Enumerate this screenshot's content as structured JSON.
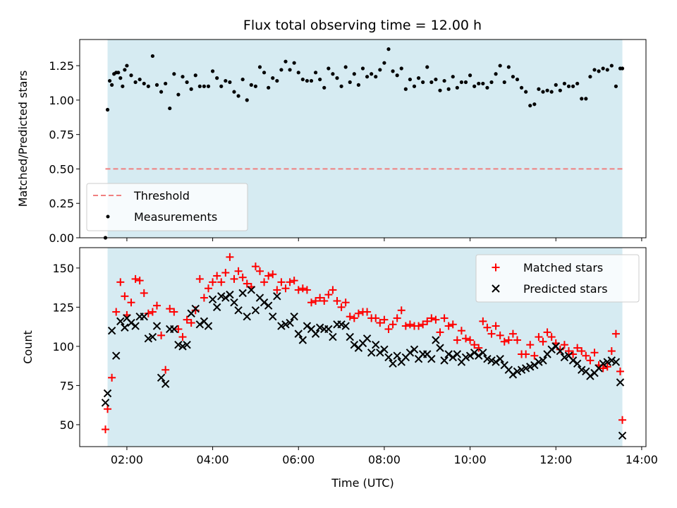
{
  "title": "Flux total observing time = 12.00 h",
  "chart_data": [
    {
      "type": "scatter",
      "title": "Flux total observing time = 12.00 h",
      "xlabel": "",
      "ylabel": "Matched/Predicted stars",
      "xlim": [
        0.9,
        14.1
      ],
      "ylim": [
        0.0,
        1.44
      ],
      "yticks": [
        0.0,
        0.25,
        0.5,
        0.75,
        1.0,
        1.25
      ],
      "ytick_labels": [
        "0.00",
        "0.25",
        "0.50",
        "0.75",
        "1.00",
        "1.25"
      ],
      "shaded_span": [
        1.55,
        13.55
      ],
      "shaded_color": "#add8e6",
      "threshold": {
        "name": "Threshold",
        "y": 0.5,
        "x": [
          1.5,
          13.55
        ],
        "color": "#f08080"
      },
      "legend": {
        "location": "lower-left",
        "entries": [
          "Threshold",
          "Measurements"
        ]
      },
      "series": [
        {
          "name": "Measurements",
          "color": "#000000",
          "x": [
            1.5,
            1.55,
            1.6,
            1.65,
            1.7,
            1.75,
            1.8,
            1.85,
            1.9,
            1.95,
            2.0,
            2.1,
            2.2,
            2.3,
            2.4,
            2.5,
            2.6,
            2.7,
            2.8,
            2.9,
            3.0,
            3.1,
            3.2,
            3.3,
            3.4,
            3.5,
            3.6,
            3.7,
            3.8,
            3.9,
            4.0,
            4.1,
            4.2,
            4.3,
            4.4,
            4.5,
            4.6,
            4.7,
            4.8,
            4.9,
            5.0,
            5.1,
            5.2,
            5.3,
            5.4,
            5.5,
            5.6,
            5.7,
            5.8,
            5.9,
            6.0,
            6.1,
            6.2,
            6.3,
            6.4,
            6.5,
            6.6,
            6.7,
            6.8,
            6.9,
            7.0,
            7.1,
            7.2,
            7.3,
            7.4,
            7.5,
            7.6,
            7.7,
            7.8,
            7.9,
            8.0,
            8.1,
            8.2,
            8.3,
            8.4,
            8.5,
            8.6,
            8.7,
            8.8,
            8.9,
            9.0,
            9.1,
            9.2,
            9.3,
            9.4,
            9.5,
            9.6,
            9.7,
            9.8,
            9.9,
            10.0,
            10.1,
            10.2,
            10.3,
            10.4,
            10.5,
            10.6,
            10.7,
            10.8,
            10.9,
            11.0,
            11.1,
            11.2,
            11.3,
            11.4,
            11.5,
            11.6,
            11.7,
            11.8,
            11.9,
            12.0,
            12.1,
            12.2,
            12.3,
            12.4,
            12.5,
            12.6,
            12.7,
            12.8,
            12.9,
            13.0,
            13.1,
            13.2,
            13.3,
            13.4,
            13.5,
            13.55
          ],
          "y": [
            0.0,
            0.93,
            1.14,
            1.11,
            1.19,
            1.2,
            1.2,
            1.16,
            1.1,
            1.22,
            1.25,
            1.18,
            1.13,
            1.15,
            1.12,
            1.1,
            1.32,
            1.11,
            1.06,
            1.12,
            0.94,
            1.19,
            1.04,
            1.17,
            1.13,
            1.08,
            1.18,
            1.1,
            1.1,
            1.1,
            1.21,
            1.16,
            1.1,
            1.14,
            1.13,
            1.06,
            1.03,
            1.15,
            1.0,
            1.11,
            1.1,
            1.24,
            1.2,
            1.09,
            1.16,
            1.14,
            1.22,
            1.28,
            1.22,
            1.27,
            1.2,
            1.15,
            1.14,
            1.14,
            1.2,
            1.15,
            1.09,
            1.23,
            1.19,
            1.16,
            1.1,
            1.24,
            1.13,
            1.19,
            1.11,
            1.23,
            1.17,
            1.19,
            1.17,
            1.22,
            1.27,
            1.37,
            1.21,
            1.18,
            1.23,
            1.08,
            1.15,
            1.1,
            1.16,
            1.13,
            1.24,
            1.13,
            1.15,
            1.07,
            1.14,
            1.08,
            1.17,
            1.09,
            1.13,
            1.13,
            1.18,
            1.1,
            1.12,
            1.12,
            1.09,
            1.13,
            1.19,
            1.25,
            1.13,
            1.24,
            1.17,
            1.15,
            1.09,
            1.06,
            0.96,
            0.97,
            1.08,
            1.06,
            1.07,
            1.06,
            1.11,
            1.07,
            1.12,
            1.1,
            1.1,
            1.12,
            1.01,
            1.01,
            1.17,
            1.22,
            1.21,
            1.23,
            1.22,
            1.25,
            1.1,
            1.23,
            1.23
          ]
        }
      ]
    },
    {
      "type": "scatter",
      "xlabel": "Time (UTC)",
      "ylabel": "Count",
      "xlim": [
        0.9,
        14.1
      ],
      "ylim": [
        36,
        163
      ],
      "xticks": [
        2,
        4,
        6,
        8,
        10,
        12,
        14
      ],
      "xtick_labels": [
        "02:00",
        "04:00",
        "06:00",
        "08:00",
        "10:00",
        "12:00",
        "14:00"
      ],
      "yticks": [
        50,
        75,
        100,
        125,
        150
      ],
      "ytick_labels": [
        "50",
        "75",
        "100",
        "125",
        "150"
      ],
      "shaded_span": [
        1.55,
        13.55
      ],
      "shaded_color": "#add8e6",
      "legend": {
        "location": "top-right",
        "entries": [
          "Matched stars",
          "Predicted stars"
        ]
      },
      "series": [
        {
          "name": "Matched stars",
          "marker": "+",
          "color": "#ff0000",
          "x": [
            1.5,
            1.55,
            1.65,
            1.75,
            1.85,
            1.95,
            2.0,
            2.1,
            2.2,
            2.3,
            2.4,
            2.5,
            2.6,
            2.7,
            2.8,
            2.9,
            3.0,
            3.1,
            3.2,
            3.3,
            3.4,
            3.5,
            3.6,
            3.7,
            3.8,
            3.9,
            4.0,
            4.1,
            4.2,
            4.3,
            4.4,
            4.5,
            4.6,
            4.7,
            4.8,
            4.9,
            5.0,
            5.1,
            5.2,
            5.3,
            5.4,
            5.5,
            5.6,
            5.7,
            5.8,
            5.9,
            6.0,
            6.1,
            6.2,
            6.3,
            6.4,
            6.5,
            6.6,
            6.7,
            6.8,
            6.9,
            7.0,
            7.1,
            7.2,
            7.3,
            7.4,
            7.5,
            7.6,
            7.7,
            7.8,
            7.9,
            8.0,
            8.1,
            8.2,
            8.3,
            8.4,
            8.5,
            8.6,
            8.7,
            8.8,
            8.9,
            9.0,
            9.1,
            9.2,
            9.3,
            9.4,
            9.5,
            9.6,
            9.7,
            9.8,
            9.9,
            10.0,
            10.1,
            10.2,
            10.3,
            10.4,
            10.5,
            10.6,
            10.7,
            10.8,
            10.9,
            11.0,
            11.1,
            11.2,
            11.3,
            11.4,
            11.5,
            11.6,
            11.7,
            11.8,
            11.9,
            12.0,
            12.1,
            12.2,
            12.3,
            12.4,
            12.5,
            12.6,
            12.7,
            12.8,
            12.9,
            13.0,
            13.1,
            13.2,
            13.3,
            13.4,
            13.5,
            13.55
          ],
          "y": [
            47,
            60,
            80,
            122,
            141,
            132,
            120,
            128,
            143,
            142,
            134,
            121,
            122,
            126,
            107,
            85,
            124,
            122,
            111,
            106,
            117,
            115,
            123,
            143,
            131,
            137,
            141,
            145,
            141,
            147,
            157,
            143,
            148,
            144,
            140,
            138,
            151,
            148,
            141,
            145,
            146,
            136,
            141,
            137,
            141,
            142,
            136,
            137,
            136,
            128,
            129,
            131,
            129,
            133,
            136,
            129,
            125,
            128,
            119,
            118,
            121,
            122,
            122,
            118,
            118,
            115,
            117,
            111,
            114,
            118,
            123,
            113,
            114,
            113,
            113,
            114,
            116,
            118,
            117,
            109,
            118,
            113,
            114,
            104,
            110,
            105,
            104,
            101,
            99,
            116,
            112,
            108,
            113,
            107,
            103,
            104,
            108,
            104,
            95,
            95,
            101,
            94,
            106,
            103,
            109,
            106,
            102,
            98,
            101,
            97,
            95,
            99,
            97,
            94,
            91,
            96,
            88,
            86,
            87,
            97,
            108,
            84,
            53
          ]
        },
        {
          "name": "Predicted stars",
          "marker": "x",
          "color": "#000000",
          "x": [
            1.5,
            1.55,
            1.65,
            1.75,
            1.85,
            1.95,
            2.0,
            2.1,
            2.2,
            2.3,
            2.4,
            2.5,
            2.6,
            2.7,
            2.8,
            2.9,
            3.0,
            3.1,
            3.2,
            3.3,
            3.4,
            3.5,
            3.6,
            3.7,
            3.8,
            3.9,
            4.0,
            4.1,
            4.2,
            4.3,
            4.4,
            4.5,
            4.6,
            4.7,
            4.8,
            4.9,
            5.0,
            5.1,
            5.2,
            5.3,
            5.4,
            5.5,
            5.6,
            5.7,
            5.8,
            5.9,
            6.0,
            6.1,
            6.2,
            6.3,
            6.4,
            6.5,
            6.6,
            6.7,
            6.8,
            6.9,
            7.0,
            7.1,
            7.2,
            7.3,
            7.4,
            7.5,
            7.6,
            7.7,
            7.8,
            7.9,
            8.0,
            8.1,
            8.2,
            8.3,
            8.4,
            8.5,
            8.6,
            8.7,
            8.8,
            8.9,
            9.0,
            9.1,
            9.2,
            9.3,
            9.4,
            9.5,
            9.6,
            9.7,
            9.8,
            9.9,
            10.0,
            10.1,
            10.2,
            10.3,
            10.4,
            10.5,
            10.6,
            10.7,
            10.8,
            10.9,
            11.0,
            11.1,
            11.2,
            11.3,
            11.4,
            11.5,
            11.6,
            11.7,
            11.8,
            11.9,
            12.0,
            12.1,
            12.2,
            12.3,
            12.4,
            12.5,
            12.6,
            12.7,
            12.8,
            12.9,
            13.0,
            13.1,
            13.2,
            13.3,
            13.4,
            13.5,
            13.55
          ],
          "y": [
            64,
            70,
            110,
            94,
            116,
            112,
            118,
            115,
            113,
            119,
            119,
            105,
            106,
            113,
            80,
            76,
            111,
            111,
            101,
            100,
            101,
            121,
            124,
            114,
            116,
            113,
            130,
            125,
            132,
            131,
            133,
            128,
            123,
            134,
            119,
            136,
            123,
            131,
            128,
            126,
            119,
            132,
            113,
            114,
            115,
            119,
            108,
            104,
            113,
            111,
            108,
            112,
            111,
            111,
            106,
            114,
            114,
            113,
            106,
            101,
            99,
            102,
            105,
            96,
            101,
            96,
            98,
            93,
            89,
            94,
            90,
            93,
            96,
            98,
            92,
            95,
            95,
            92,
            104,
            99,
            91,
            95,
            93,
            95,
            90,
            93,
            94,
            96,
            94,
            96,
            92,
            91,
            90,
            92,
            88,
            85,
            82,
            84,
            85,
            86,
            87,
            88,
            90,
            91,
            95,
            98,
            100,
            97,
            93,
            94,
            91,
            89,
            85,
            84,
            81,
            83,
            86,
            89,
            90,
            91,
            90,
            77,
            43
          ]
        }
      ]
    }
  ]
}
